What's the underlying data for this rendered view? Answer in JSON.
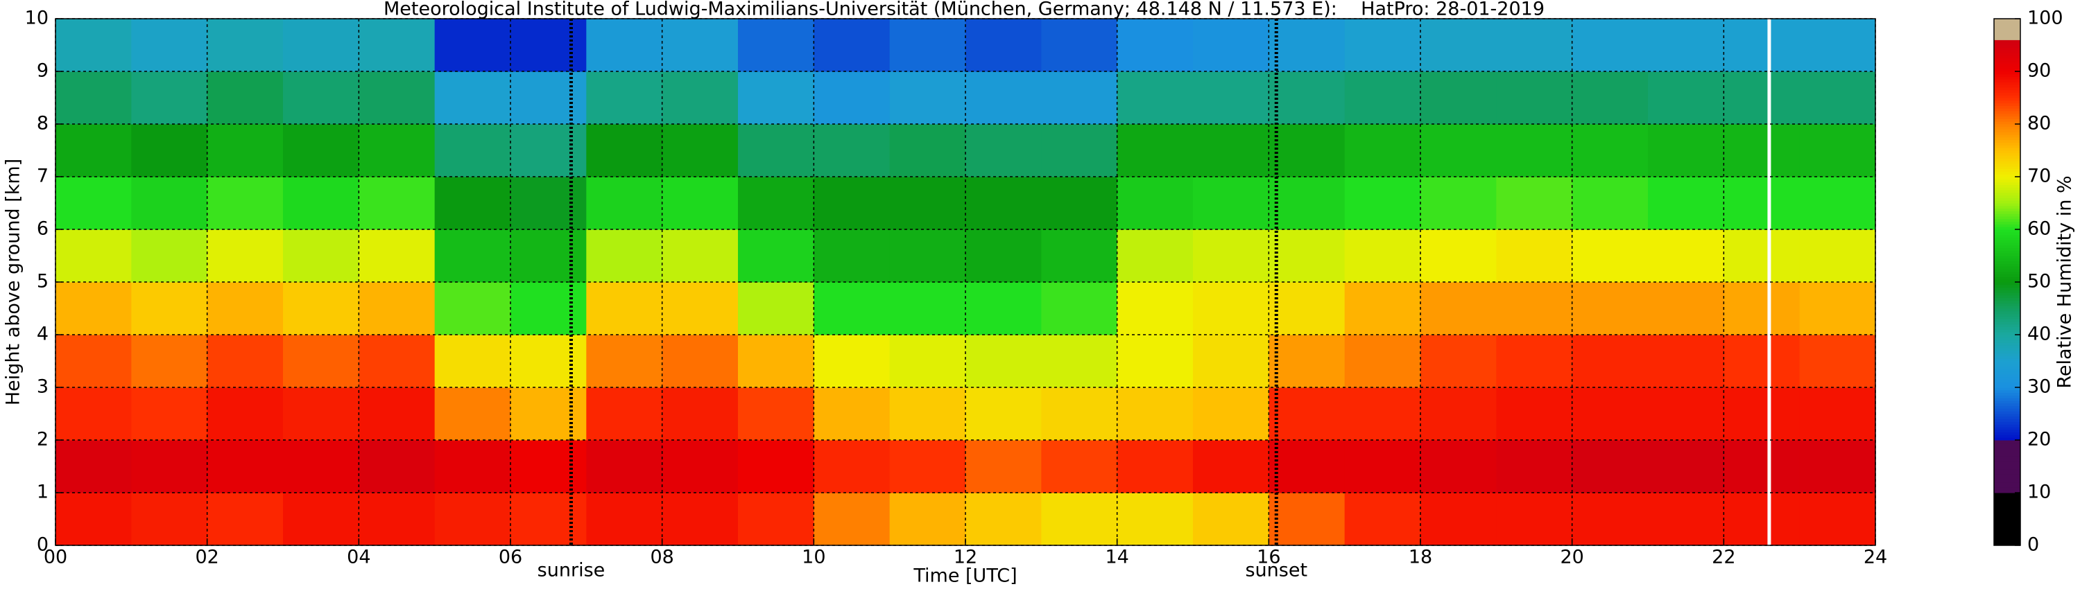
{
  "chart_data": {
    "type": "heatmap",
    "title": "Meteorological Institute of Ludwig-Maximilians-Universität (München, Germany; 48.148 N / 11.573 E):    HatPro: 28-01-2019",
    "xlabel": "Time [UTC]",
    "ylabel": "Height above ground [km]",
    "x": [
      0,
      1,
      2,
      3,
      4,
      5,
      6,
      7,
      8,
      9,
      10,
      11,
      12,
      13,
      14,
      15,
      16,
      17,
      18,
      19,
      20,
      21,
      22,
      23
    ],
    "y": [
      0,
      1,
      2,
      3,
      4,
      5,
      6,
      7,
      8,
      9
    ],
    "z": [
      [
        88,
        87,
        86,
        88,
        88,
        87,
        86,
        88,
        88,
        86,
        80,
        76,
        74,
        72,
        72,
        74,
        82,
        86,
        88,
        88,
        88,
        88,
        88,
        88
      ],
      [
        94,
        93,
        92,
        92,
        94,
        92,
        90,
        93,
        92,
        90,
        86,
        85,
        82,
        84,
        86,
        88,
        92,
        92,
        93,
        94,
        95,
        95,
        94,
        94
      ],
      [
        86,
        85,
        88,
        87,
        88,
        80,
        76,
        86,
        87,
        84,
        76,
        74,
        72,
        73,
        74,
        75,
        86,
        86,
        87,
        88,
        88,
        88,
        88,
        88
      ],
      [
        83,
        81,
        84,
        82,
        84,
        72,
        71,
        80,
        81,
        76,
        70,
        69,
        68,
        68,
        70,
        72,
        78,
        80,
        84,
        85,
        86,
        86,
        85,
        84
      ],
      [
        76,
        74,
        76,
        74,
        76,
        62,
        60,
        74,
        74,
        66,
        60,
        60,
        60,
        61,
        70,
        71,
        72,
        76,
        78,
        78,
        78,
        78,
        77,
        76
      ],
      [
        68,
        66,
        69,
        67,
        69,
        55,
        54,
        66,
        67,
        58,
        53,
        53,
        52,
        54,
        67,
        68,
        68,
        69,
        70,
        71,
        70,
        70,
        69,
        69
      ],
      [
        60,
        58,
        61,
        59,
        61,
        50,
        49,
        58,
        59,
        52,
        50,
        50,
        50,
        50,
        57,
        58,
        58,
        60,
        61,
        62,
        61,
        60,
        60,
        60
      ],
      [
        52,
        50,
        53,
        51,
        53,
        44,
        43,
        50,
        51,
        45,
        45,
        46,
        45,
        45,
        52,
        52,
        52,
        54,
        55,
        55,
        55,
        54,
        54,
        54
      ],
      [
        45,
        43,
        46,
        44,
        45,
        35,
        34,
        42,
        43,
        35,
        32,
        34,
        33,
        33,
        42,
        42,
        43,
        44,
        45,
        45,
        45,
        44,
        44,
        44
      ],
      [
        38,
        36,
        38,
        37,
        38,
        22,
        22,
        33,
        34,
        27,
        25,
        27,
        25,
        26,
        30,
        31,
        33,
        35,
        36,
        36,
        35,
        35,
        35,
        35
      ]
    ],
    "xlim": [
      0,
      24
    ],
    "xticks": [
      {
        "value": 0,
        "label": "00"
      },
      {
        "value": 2,
        "label": "02"
      },
      {
        "value": 4,
        "label": "04"
      },
      {
        "value": 6,
        "label": "06"
      },
      {
        "value": 8,
        "label": "08"
      },
      {
        "value": 10,
        "label": "10"
      },
      {
        "value": 12,
        "label": "12"
      },
      {
        "value": 14,
        "label": "14"
      },
      {
        "value": 16,
        "label": "16"
      },
      {
        "value": 18,
        "label": "18"
      },
      {
        "value": 20,
        "label": "20"
      },
      {
        "value": 22,
        "label": "22"
      },
      {
        "value": 24,
        "label": "24"
      }
    ],
    "ylim": [
      0,
      10
    ],
    "yticks": [
      0,
      1,
      2,
      3,
      4,
      5,
      6,
      7,
      8,
      9,
      10
    ],
    "grid": true,
    "annotations": [
      {
        "text": "sunrise",
        "x": 6.8
      },
      {
        "text": "sunset",
        "x": 16.1
      }
    ],
    "gap_x": [
      22.6
    ],
    "colorbar": {
      "label": "Relative Humidity in %",
      "clim": [
        0,
        100
      ],
      "ticks": [
        0,
        10,
        20,
        30,
        40,
        50,
        60,
        70,
        80,
        90,
        100
      ]
    },
    "colormap": [
      {
        "at": 0,
        "color": "#000000"
      },
      {
        "at": 9.99,
        "color": "#000000"
      },
      {
        "at": 10,
        "color": "#4b0a55"
      },
      {
        "at": 19.99,
        "color": "#4b0a55"
      },
      {
        "at": 20,
        "color": "#0010c8"
      },
      {
        "at": 30,
        "color": "#1a90e0"
      },
      {
        "at": 35,
        "color": "#1ca0d0"
      },
      {
        "at": 40,
        "color": "#1aa8a0"
      },
      {
        "at": 45,
        "color": "#13a060"
      },
      {
        "at": 50,
        "color": "#0a9a10"
      },
      {
        "at": 60,
        "color": "#20e020"
      },
      {
        "at": 65,
        "color": "#a0f010"
      },
      {
        "at": 70,
        "color": "#f0f000"
      },
      {
        "at": 75,
        "color": "#ffc000"
      },
      {
        "at": 80,
        "color": "#ff8000"
      },
      {
        "at": 85,
        "color": "#ff3000"
      },
      {
        "at": 90,
        "color": "#ee0000"
      },
      {
        "at": 96,
        "color": "#d00010"
      },
      {
        "at": 96.01,
        "color": "#c8b48c"
      },
      {
        "at": 100,
        "color": "#c8b48c"
      }
    ]
  }
}
